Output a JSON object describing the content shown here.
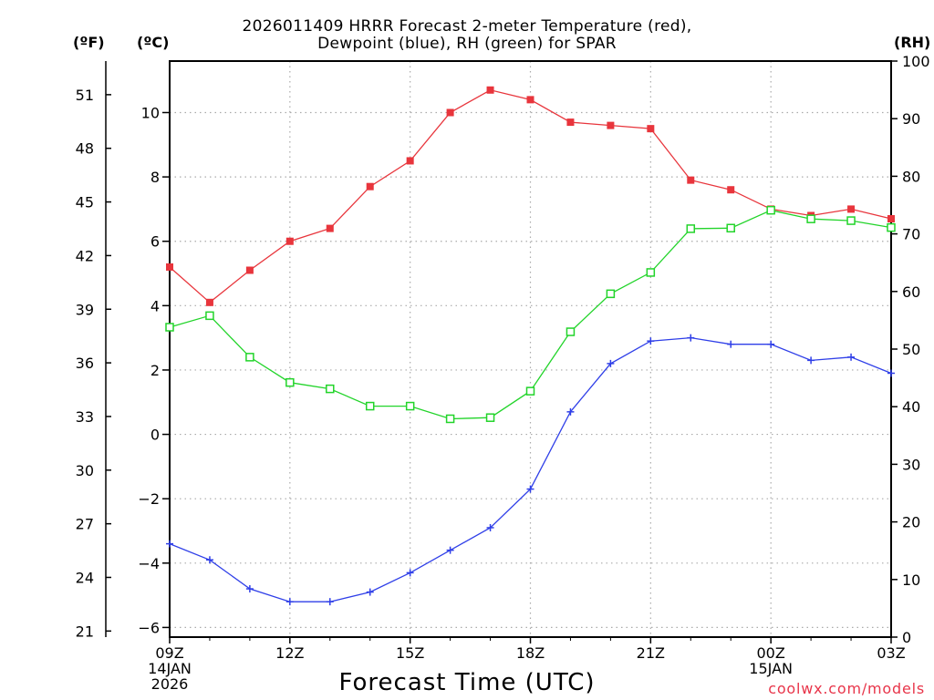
{
  "chart_data": {
    "type": "line",
    "title_line1": "2026011409 HRRR Forecast 2-meter Temperature (red),",
    "title_line2": "Dewpoint (blue), RH (green) for SPAR",
    "xlabel": "Forecast Time (UTC)",
    "credit": "coolwx.com/models",
    "units": {
      "f": "(ºF)",
      "c": "(ºC)",
      "rh": "(RH)"
    },
    "x_hours": [
      0,
      1,
      2,
      3,
      4,
      5,
      6,
      7,
      8,
      9,
      10,
      11,
      12,
      13,
      14,
      15,
      16,
      17,
      18
    ],
    "x_range": [
      0,
      18
    ],
    "x_ticks": [
      {
        "hour": 0,
        "lines": [
          "09Z",
          "14JAN",
          "2026"
        ]
      },
      {
        "hour": 3,
        "lines": [
          "12Z"
        ]
      },
      {
        "hour": 6,
        "lines": [
          "15Z"
        ]
      },
      {
        "hour": 9,
        "lines": [
          "18Z"
        ]
      },
      {
        "hour": 12,
        "lines": [
          "21Z"
        ]
      },
      {
        "hour": 15,
        "lines": [
          "00Z",
          "15JAN"
        ]
      },
      {
        "hour": 18,
        "lines": [
          "03Z"
        ]
      }
    ],
    "y_celsius_range": [
      -6.3,
      11.6
    ],
    "y_celsius_ticks": [
      -6,
      -4,
      -2,
      0,
      2,
      4,
      6,
      8,
      10
    ],
    "y_celsius_tick_labels": [
      "−6",
      "−4",
      "−2",
      "0",
      "2",
      "4",
      "6",
      "8",
      "10"
    ],
    "y_fahrenheit_ticks": [
      21,
      24,
      27,
      30,
      33,
      36,
      39,
      42,
      45,
      48,
      51
    ],
    "y_rh_range": [
      0,
      100
    ],
    "y_rh_ticks": [
      0,
      10,
      20,
      30,
      40,
      50,
      60,
      70,
      80,
      90,
      100
    ],
    "series": [
      {
        "name": "Temperature",
        "axis": "celsius",
        "color": "#e8353c",
        "marker": "filled-square",
        "values": [
          5.2,
          4.1,
          5.1,
          6.0,
          6.4,
          7.7,
          8.5,
          10.0,
          10.7,
          10.4,
          9.7,
          9.6,
          9.5,
          7.9,
          7.6,
          7.0,
          6.8,
          7.0,
          6.7
        ]
      },
      {
        "name": "Dewpoint",
        "axis": "celsius",
        "color": "#2f3fe8",
        "marker": "plus",
        "values": [
          -3.4,
          -3.9,
          -4.8,
          -5.2,
          -5.2,
          -4.9,
          -4.3,
          -3.6,
          -2.9,
          -1.7,
          0.7,
          2.2,
          2.9,
          3.0,
          2.8,
          2.8,
          2.3,
          2.4,
          1.9
        ]
      },
      {
        "name": "RH",
        "axis": "rh",
        "color": "#22d42a",
        "marker": "open-square",
        "values": [
          53.8,
          55.8,
          48.6,
          44.2,
          43.1,
          40.1,
          40.1,
          37.9,
          38.1,
          42.7,
          53.0,
          59.6,
          63.3,
          70.9,
          71.0,
          74.1,
          72.6,
          72.3,
          71.1
        ]
      }
    ]
  }
}
